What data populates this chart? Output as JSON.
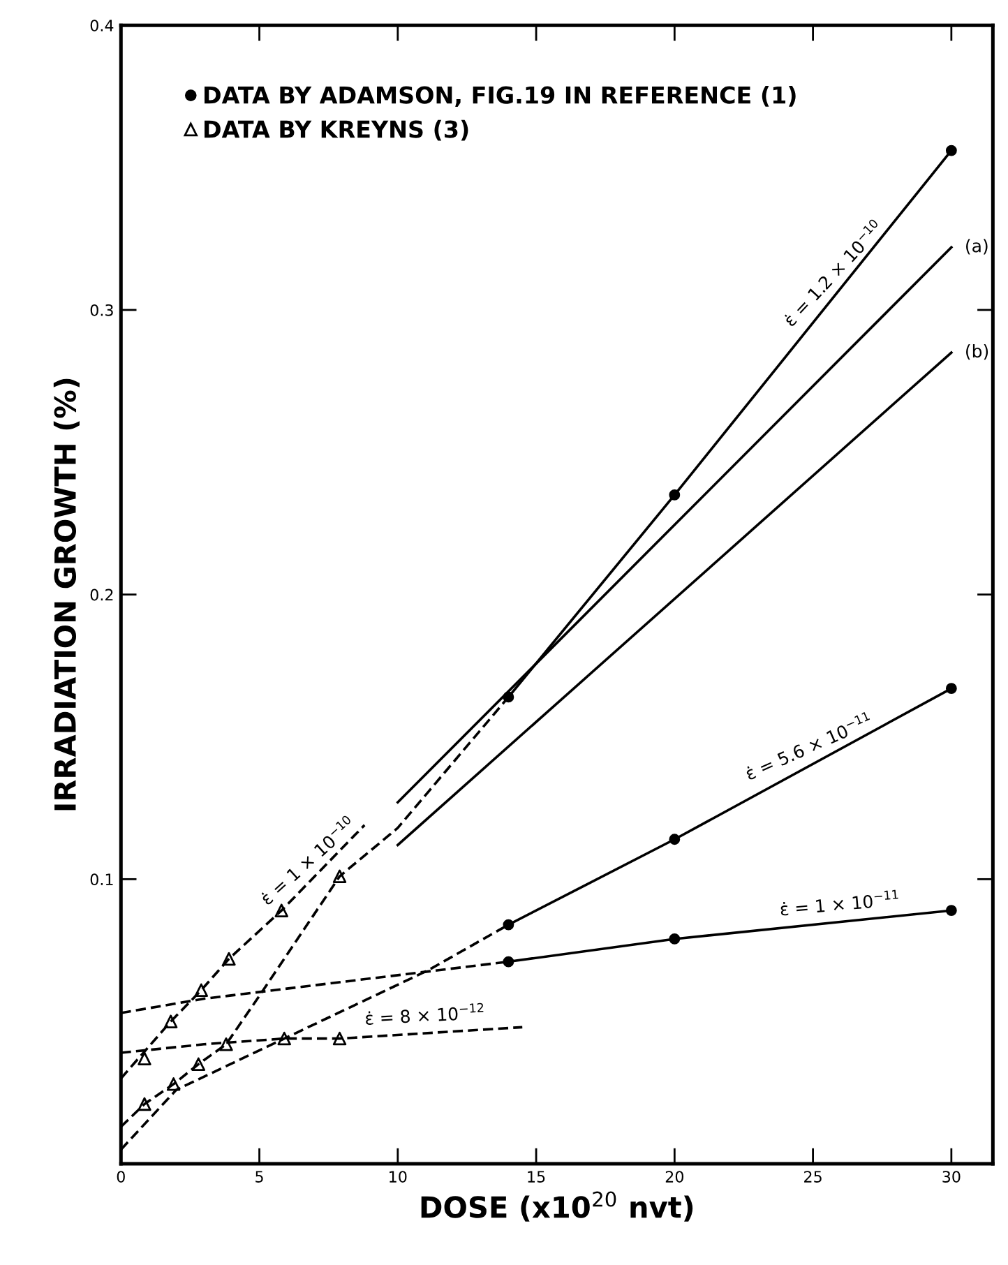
{
  "chart_data": {
    "type": "line",
    "xlabel": "DOSE (x10$^{20}$ nvt)",
    "ylabel": "IRRADIATION GROWTH (%)",
    "xlim": [
      0,
      31.5
    ],
    "ylim": [
      0,
      0.4
    ],
    "xticks": [
      0,
      5,
      10,
      15,
      20,
      25,
      30
    ],
    "yticks": [
      0.1,
      0.2,
      0.3,
      0.4
    ],
    "legend": "top left",
    "grid": false,
    "series": [
      {
        "name": "DATA BY ADAMSON, FIG.19 IN REFERENCE (1)",
        "type": "scatter",
        "marker": "circle",
        "color": "#000000",
        "x": [
          14,
          20,
          30,
          14,
          20,
          30,
          14,
          20,
          30
        ],
        "values": [
          0.164,
          0.235,
          0.356,
          0.084,
          0.114,
          0.167,
          0.071,
          0.079,
          0.089
        ]
      },
      {
        "name": "DATA BY KREYNS (3)",
        "type": "scatter",
        "marker": "triangle",
        "color": "#000000",
        "x": [
          0.85,
          1.9,
          2.8,
          3.8,
          5.9,
          7.9,
          0.85,
          1.8,
          2.9,
          3.9,
          5.8,
          7.9
        ],
        "values": [
          0.021,
          0.028,
          0.035,
          0.042,
          0.044,
          0.044,
          0.037,
          0.05,
          0.061,
          0.072,
          0.089,
          0.101
        ]
      },
      {
        "line_style": "dashed",
        "color": "#000000",
        "x": [
          0,
          0.85,
          1.9,
          2.8,
          3.8,
          5,
          7.9,
          10,
          14
        ],
        "values": [
          0.013,
          0.021,
          0.028,
          0.035,
          0.042,
          0.059,
          0.101,
          0.118,
          0.164
        ]
      },
      {
        "line_style": "solid",
        "color": "#000000",
        "x": [
          14,
          20,
          30
        ],
        "values": [
          0.164,
          0.235,
          0.356
        ]
      },
      {
        "line_style": "dashed",
        "color": "#000000",
        "x": [
          0,
          1.8,
          2.9,
          3.9,
          5.8,
          8.8
        ],
        "values": [
          0.03,
          0.05,
          0.061,
          0.072,
          0.089,
          0.119
        ]
      },
      {
        "line_style": "solid",
        "color": "#000000",
        "x": [
          10,
          30
        ],
        "values": [
          0.127,
          0.322
        ]
      },
      {
        "line_style": "solid",
        "color": "#000000",
        "x": [
          10,
          30
        ],
        "values": [
          0.112,
          0.285
        ]
      },
      {
        "line_style": "dashed",
        "color": "#000000",
        "x": [
          0,
          2,
          11.1,
          14
        ],
        "values": [
          0.005,
          0.026,
          0.068,
          0.084
        ]
      },
      {
        "line_style": "solid",
        "color": "#000000",
        "x": [
          14,
          20,
          30
        ],
        "values": [
          0.084,
          0.114,
          0.167
        ]
      },
      {
        "line_style": "dashed",
        "color": "#000000",
        "x": [
          0,
          3,
          14
        ],
        "values": [
          0.053,
          0.058,
          0.071
        ]
      },
      {
        "line_style": "solid",
        "color": "#000000",
        "x": [
          14,
          20,
          30
        ],
        "values": [
          0.071,
          0.079,
          0.089
        ]
      },
      {
        "line_style": "dashed",
        "color": "#000000",
        "x": [
          0,
          3,
          5.9,
          7.9,
          14.5
        ],
        "values": [
          0.039,
          0.042,
          0.044,
          0.044,
          0.048
        ]
      }
    ],
    "annotations": [
      {
        "text": "ε̇ = 1.2 × 10$^{−10}$",
        "x": 26,
        "y": 0.3076
      },
      {
        "text": "(a)",
        "x": 30.2,
        "y": 0.322
      },
      {
        "text": "(b)",
        "x": 30.2,
        "y": 0.285
      },
      {
        "text": "ε̇ = 5.6 × 10$^{−11}$",
        "x": 25,
        "y": 0.1405
      },
      {
        "text": "ε̇ = 1 × 10$^{−11}$",
        "x": 26,
        "y": 0.085
      },
      {
        "text": "ε̇ = 1 × 10$^{−10}$",
        "x": 7,
        "y": 0.101
      },
      {
        "text": "ε̇ = 8 × 10$^{−12}$",
        "x": 11,
        "y": 0.0459
      }
    ]
  }
}
